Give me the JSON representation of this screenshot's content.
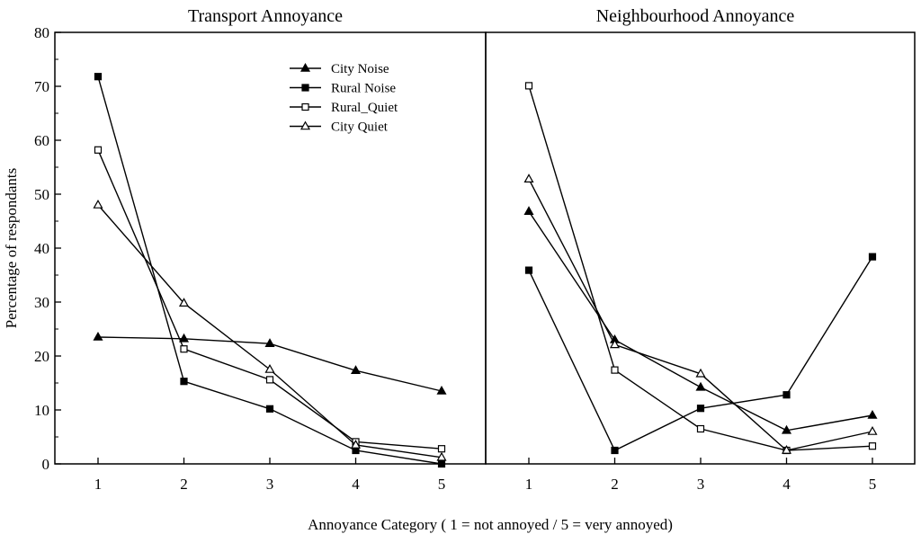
{
  "chart_data": {
    "type": "line",
    "ylabel": "Percentage of respondants",
    "xlabel": "Annoyance Category ( 1 = not annoyed / 5 = very annoyed)",
    "ylim": [
      0,
      80
    ],
    "yticks": [
      0,
      10,
      20,
      30,
      40,
      50,
      60,
      70,
      80
    ],
    "categories": [
      "1",
      "2",
      "3",
      "4",
      "5"
    ],
    "legend_position": "top-right of left panel",
    "legend": [
      "City Noise",
      "Rural Noise",
      "Rural_Quiet",
      "City Quiet"
    ],
    "panels": [
      {
        "title": "Transport Annoyance",
        "series": [
          {
            "name": "City Noise",
            "marker": "filled-triangle",
            "values": [
              23.5,
              23.2,
              22.3,
              17.3,
              13.5
            ]
          },
          {
            "name": "Rural Noise",
            "marker": "filled-square",
            "values": [
              71.8,
              15.3,
              10.2,
              2.5,
              0.0
            ]
          },
          {
            "name": "Rural_Quiet",
            "marker": "open-square",
            "values": [
              58.2,
              21.3,
              15.6,
              4.1,
              2.8
            ]
          },
          {
            "name": "City Quiet",
            "marker": "open-triangle",
            "values": [
              48.0,
              29.8,
              17.5,
              3.5,
              1.2
            ]
          }
        ]
      },
      {
        "title": "Neighbourhood Annoyance",
        "series": [
          {
            "name": "City Noise",
            "marker": "filled-triangle",
            "values": [
              46.8,
              23.0,
              14.2,
              6.2,
              9.0
            ]
          },
          {
            "name": "Rural Noise",
            "marker": "filled-square",
            "values": [
              35.9,
              2.5,
              10.3,
              12.8,
              38.4
            ]
          },
          {
            "name": "Rural_Quiet",
            "marker": "open-square",
            "values": [
              70.1,
              17.4,
              6.5,
              2.5,
              3.3
            ]
          },
          {
            "name": "City Quiet",
            "marker": "open-triangle",
            "values": [
              52.8,
              22.1,
              16.7,
              2.5,
              6.0
            ]
          }
        ]
      }
    ]
  }
}
